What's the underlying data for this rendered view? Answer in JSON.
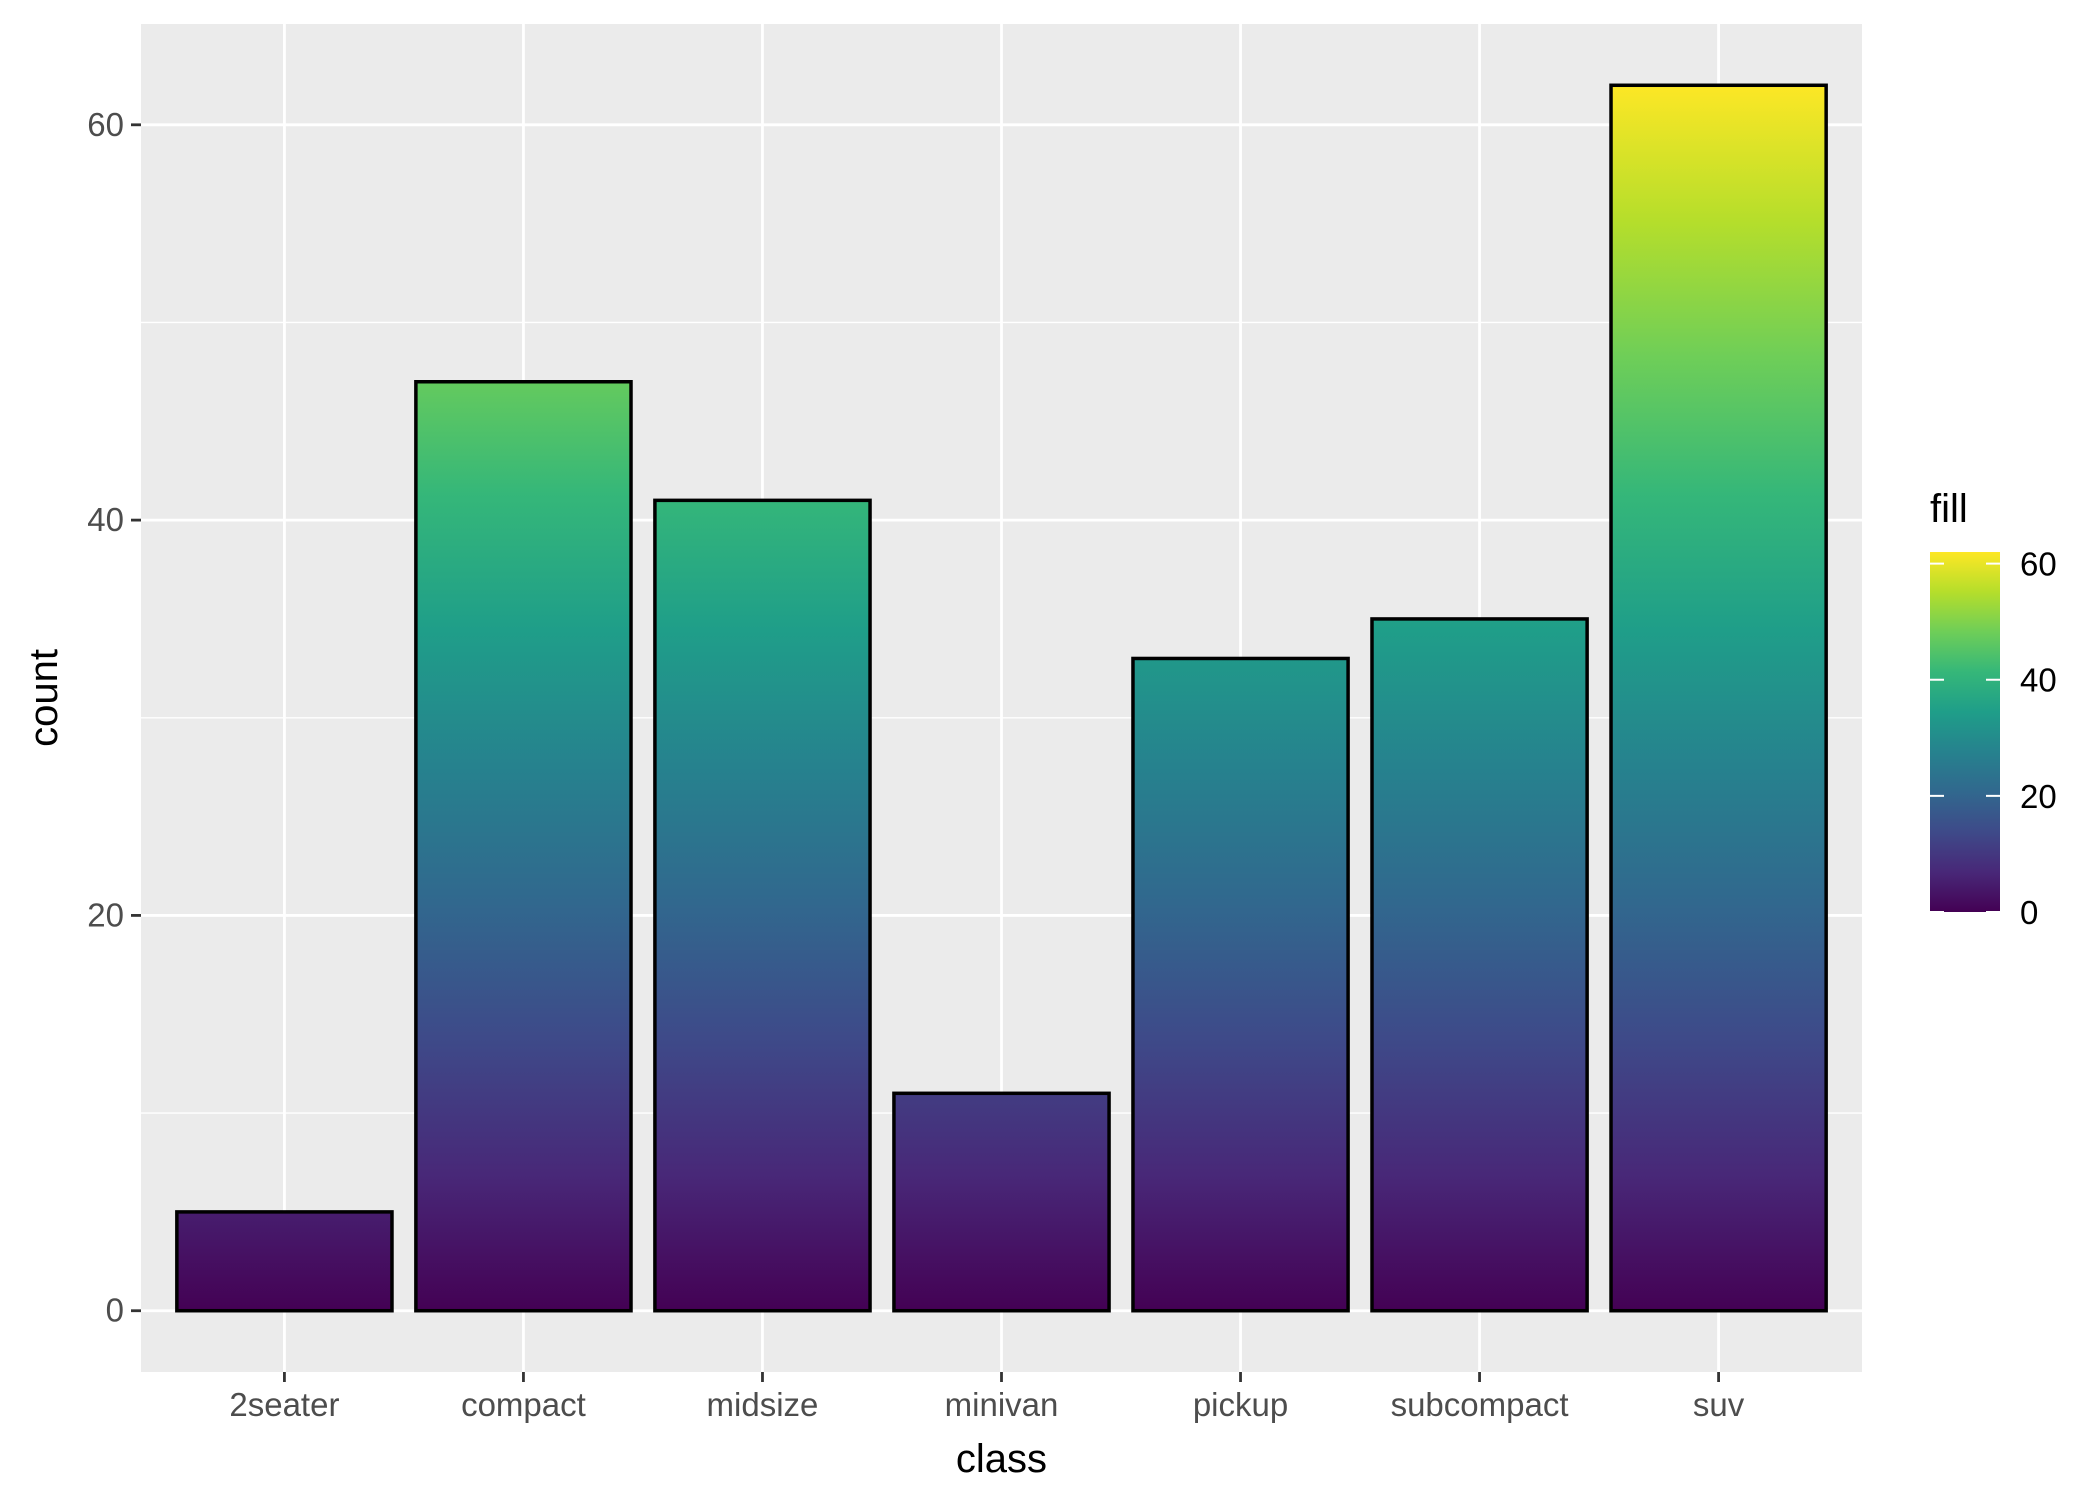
{
  "chart_data": {
    "type": "bar",
    "categories": [
      "2seater",
      "compact",
      "midsize",
      "minivan",
      "pickup",
      "subcompact",
      "suv"
    ],
    "values": [
      5,
      47,
      41,
      11,
      33,
      35,
      62
    ],
    "xlabel": "class",
    "ylabel": "count",
    "ylim": [
      -3.1,
      65.1
    ],
    "y_ticks": [
      0,
      20,
      40,
      60
    ],
    "y_tick_labels": [
      "0",
      "20",
      "40",
      "60"
    ],
    "grid": true,
    "legend": {
      "title": "fill",
      "placement": "right",
      "type": "continuous colorbar",
      "range": [
        0,
        62
      ],
      "ticks": [
        0,
        20,
        40,
        60
      ],
      "tick_labels": [
        "0",
        "20",
        "40",
        "60"
      ]
    },
    "fill_scale": "viridis (gradient along bar height, mapped to count)",
    "colors": {
      "panel_background": "#ebebeb",
      "grid_line": "#ffffff",
      "bar_outline": "#000000",
      "viridis_stops": [
        "#440154",
        "#482878",
        "#3e4a89",
        "#31688e",
        "#26828e",
        "#1f9e89",
        "#35b779",
        "#6ece58",
        "#b5de2b",
        "#fde725"
      ]
    }
  }
}
